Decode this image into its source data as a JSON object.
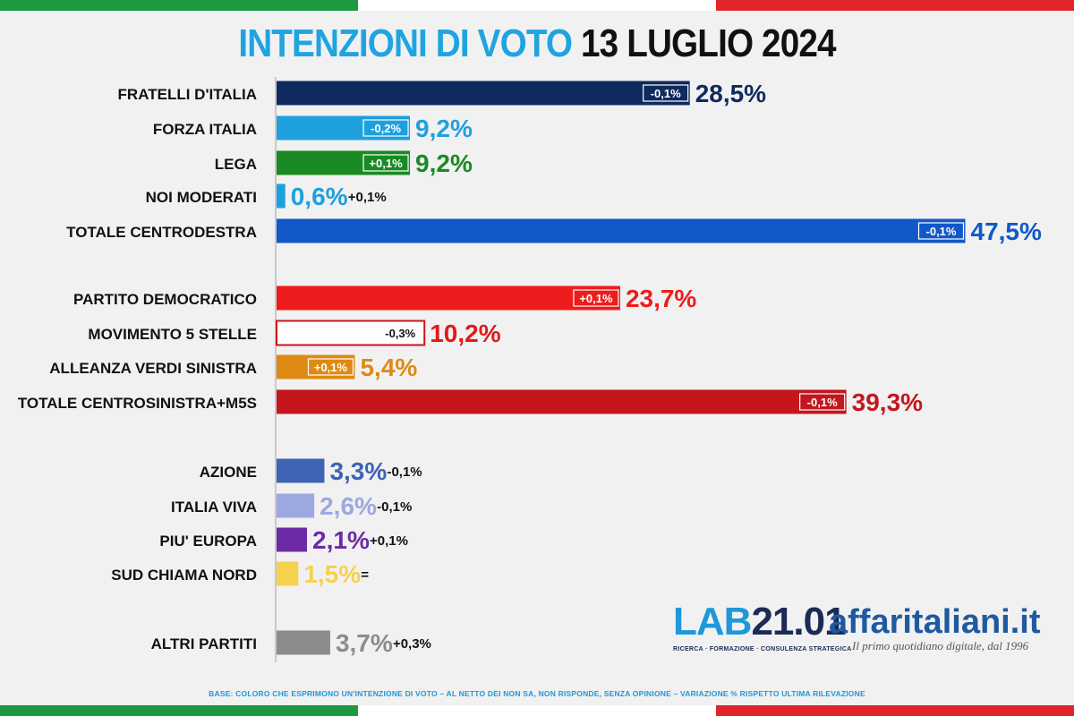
{
  "header": {
    "title_part1": "INTENZIONI DI VOTO",
    "title_part2": "13 LUGLIO 2024"
  },
  "flag_colors": [
    "#1d9a3f",
    "#ffffff",
    "#e0262b"
  ],
  "chart_data": {
    "type": "bar",
    "orientation": "horizontal",
    "title": "INTENZIONI DI VOTO 13 LUGLIO 2024",
    "unit": "%",
    "bars": [
      {
        "label": "FRATELLI D'ITALIA",
        "value": 28.5,
        "value_label": "28,5%",
        "change": "-0,1%",
        "color": "#0e2a5e",
        "value_color": "#0e2a5e",
        "change_inside": true
      },
      {
        "label": "FORZA ITALIA",
        "value": 9.2,
        "value_label": "9,2%",
        "change": "-0,2%",
        "color": "#1ea0de",
        "value_color": "#1ea0de",
        "change_inside": true
      },
      {
        "label": "LEGA",
        "value": 9.2,
        "value_label": "9,2%",
        "change": "+0,1%",
        "color": "#1a8a24",
        "value_color": "#1a8a24",
        "change_inside": true
      },
      {
        "label": "NOI MODERATI",
        "value": 0.6,
        "value_label": "0,6%",
        "change": "+0,1%",
        "color": "#1ea0de",
        "value_color": "#1ea0de",
        "change_inside": false
      },
      {
        "label": "TOTALE CENTRODESTRA",
        "value": 47.5,
        "value_label": "47,5%",
        "change": "-0,1%",
        "color": "#1258c8",
        "value_color": "#1258c8",
        "change_inside": true
      },
      {
        "label": "PARTITO DEMOCRATICO",
        "value": 23.7,
        "value_label": "23,7%",
        "change": "+0,1%",
        "color": "#ee1c1c",
        "value_color": "#ee1c1c",
        "change_inside": true
      },
      {
        "label": "MOVIMENTO 5 STELLE",
        "value": 10.2,
        "value_label": "10,2%",
        "change": "-0,3%",
        "color": "#ffffff",
        "value_color": "#e01b1b",
        "change_inside": true,
        "outline": "#c8161b"
      },
      {
        "label": "ALLEANZA VERDI SINISTRA",
        "value": 5.4,
        "value_label": "5,4%",
        "change": "+0,1%",
        "color": "#de8a14",
        "value_color": "#de8a14",
        "change_inside": true
      },
      {
        "label": "TOTALE CENTROSINISTRA+M5S",
        "value": 39.3,
        "value_label": "39,3%",
        "change": "-0,1%",
        "color": "#c4161c",
        "value_color": "#c4161c",
        "change_inside": true
      },
      {
        "label": "AZIONE",
        "value": 3.3,
        "value_label": "3,3%",
        "change": "-0,1%",
        "color": "#3f63b5",
        "value_color": "#3f63b5",
        "change_inside": false
      },
      {
        "label": "ITALIA VIVA",
        "value": 2.6,
        "value_label": "2,6%",
        "change": "-0,1%",
        "color": "#9da8e0",
        "value_color": "#9da8e0",
        "change_inside": false
      },
      {
        "label": "PIU' EUROPA",
        "value": 2.1,
        "value_label": "2,1%",
        "change": "+0,1%",
        "color": "#6d2aa6",
        "value_color": "#6d2aa6",
        "change_inside": false
      },
      {
        "label": "SUD CHIAMA NORD",
        "value": 1.5,
        "value_label": "1,5%",
        "change": "=",
        "color": "#f4d24e",
        "value_color": "#f4d24e",
        "change_inside": false
      },
      {
        "label": "ALTRI PARTITI",
        "value": 3.7,
        "value_label": "3,7%",
        "change": "+0,3%",
        "color": "#8c8c8c",
        "value_color": "#8c8c8c",
        "change_inside": false
      }
    ]
  },
  "logos": {
    "lab_part1": "LAB",
    "lab_part2": "21.01",
    "lab_tagline": "RICERCA · FORMAZIONE · CONSULENZA STRATEGICA",
    "affari": "affaritaliani.it",
    "affari_tagline": "Il primo quotidiano digitale, dal 1996"
  },
  "footnote": "BASE: COLORO CHE ESPRIMONO UN'INTENZIONE DI VOTO – AL NETTO DEI NON SA, NON RISPONDE, SENZA OPINIONE – VARIAZIONE % RISPETTO ULTIMA RILEVAZIONE"
}
